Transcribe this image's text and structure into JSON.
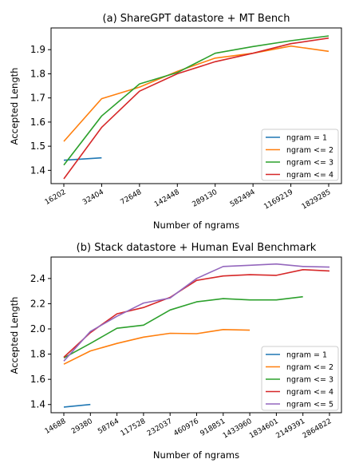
{
  "chart_data": [
    {
      "type": "line",
      "title": "(a) ShareGPT datastore + MT Bench",
      "xlabel": "Number of ngrams",
      "ylabel": "Accepted Length",
      "categories": [
        "16202",
        "32404",
        "72648",
        "142448",
        "289130",
        "582494",
        "1169219",
        "1829285"
      ],
      "yticks": [
        "1.4",
        "1.5",
        "1.6",
        "1.7",
        "1.8",
        "1.9"
      ],
      "ylim": [
        1.345,
        1.99
      ],
      "legend": "lower-right",
      "grid": false,
      "series": [
        {
          "name": "ngram = 1",
          "color": "#1f77b4",
          "values": [
            1.442,
            1.452,
            null,
            null,
            null,
            null,
            null,
            null
          ]
        },
        {
          "name": "ngram <= 2",
          "color": "#ff7f0e",
          "values": [
            1.52,
            1.697,
            1.745,
            1.81,
            1.865,
            1.885,
            1.915,
            1.893
          ]
        },
        {
          "name": "ngram <= 3",
          "color": "#2ca02c",
          "values": [
            1.422,
            1.625,
            1.758,
            1.805,
            1.885,
            1.913,
            1.937,
            1.957
          ]
        },
        {
          "name": "ngram <= 4",
          "color": "#d62728",
          "values": [
            1.365,
            1.578,
            1.728,
            1.8,
            1.85,
            1.885,
            1.925,
            1.948
          ]
        }
      ]
    },
    {
      "type": "line",
      "title": "(b) Stack datastore + Human Eval Benchmark",
      "xlabel": "Number of ngrams",
      "ylabel": "Accepted Length",
      "categories": [
        "14688",
        "29380",
        "58764",
        "117528",
        "232037",
        "460976",
        "918851",
        "1433960",
        "1834601",
        "2149391",
        "2864822"
      ],
      "yticks": [
        "1.4",
        "1.6",
        "1.8",
        "2.0",
        "2.2",
        "2.4"
      ],
      "ylim": [
        1.335,
        2.57
      ],
      "legend": "lower-right",
      "grid": false,
      "series": [
        {
          "name": "ngram = 1",
          "color": "#1f77b4",
          "values": [
            1.38,
            1.4,
            null,
            null,
            null,
            null,
            null,
            null,
            null,
            null,
            null
          ]
        },
        {
          "name": "ngram <= 2",
          "color": "#ff7f0e",
          "values": [
            1.72,
            1.825,
            1.885,
            1.935,
            1.965,
            1.962,
            1.995,
            1.99,
            null,
            null,
            null
          ]
        },
        {
          "name": "ngram <= 3",
          "color": "#2ca02c",
          "values": [
            1.77,
            1.885,
            2.005,
            2.03,
            2.15,
            2.215,
            2.24,
            2.23,
            2.23,
            2.255,
            null
          ]
        },
        {
          "name": "ngram <= 4",
          "color": "#d62728",
          "values": [
            1.775,
            1.97,
            2.12,
            2.17,
            2.25,
            2.385,
            2.42,
            2.43,
            2.425,
            2.47,
            2.46
          ]
        },
        {
          "name": "ngram <= 5",
          "color": "#9467bd",
          "values": [
            1.745,
            1.98,
            2.1,
            2.205,
            2.245,
            2.4,
            2.495,
            2.505,
            2.515,
            2.495,
            2.49
          ]
        }
      ]
    }
  ]
}
